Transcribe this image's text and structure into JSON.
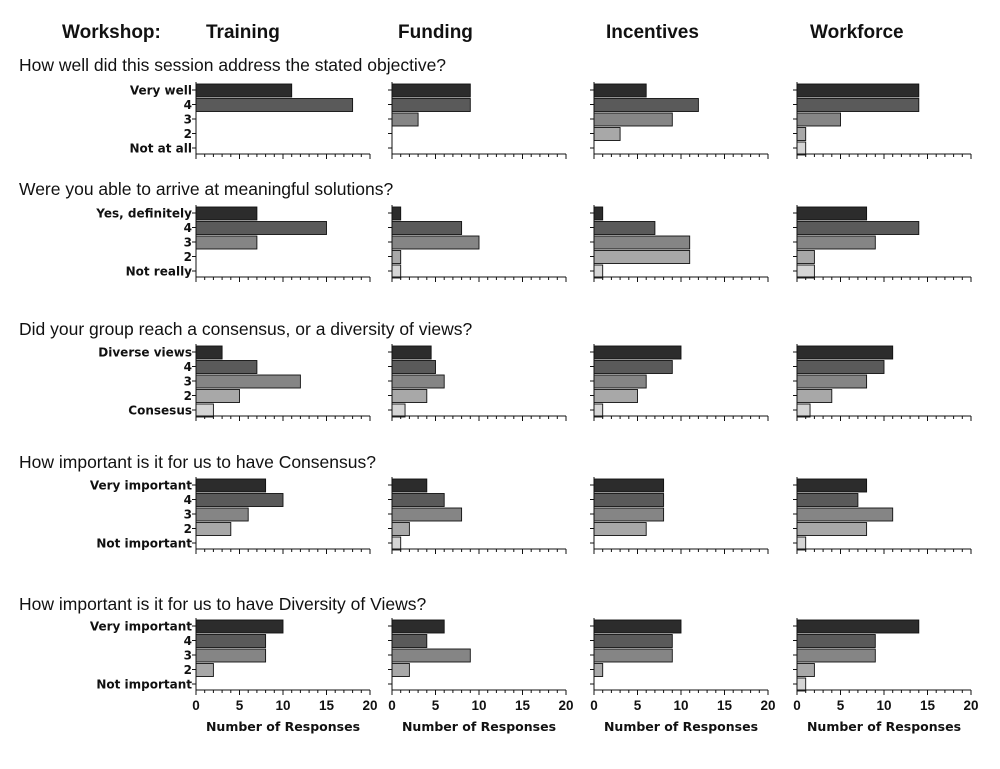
{
  "header": {
    "label": "Workshop:",
    "workshops": [
      "Training",
      "Funding",
      "Incentives",
      "Workforce"
    ]
  },
  "colors": [
    "#2c2c2c",
    "#5a5a5a",
    "#858585",
    "#a8a8a8",
    "#d5d5d5"
  ],
  "chart_data": {
    "type": "bar",
    "orientation": "horizontal",
    "xlabel": "Number of Responses",
    "xlim": [
      0,
      20
    ],
    "xticks": [
      0,
      5,
      10,
      15,
      20
    ],
    "columns": [
      "Training",
      "Funding",
      "Incentives",
      "Workforce"
    ],
    "questions": [
      {
        "title": "How well did this session address the stated objective?",
        "categories": [
          "Very well",
          "4",
          "3",
          "2",
          "Not at all"
        ],
        "values": [
          [
            11,
            18,
            0,
            0,
            0
          ],
          [
            9,
            9,
            3,
            0,
            0
          ],
          [
            6,
            12,
            9,
            3,
            0
          ],
          [
            14,
            14,
            5,
            1,
            1
          ]
        ]
      },
      {
        "title": "Were you able to arrive at meaningful solutions?",
        "categories": [
          "Yes, definitely",
          "4",
          "3",
          "2",
          "Not really"
        ],
        "values": [
          [
            7,
            15,
            7,
            0,
            0
          ],
          [
            1,
            8,
            10,
            1,
            1
          ],
          [
            1,
            7,
            11,
            11,
            1
          ],
          [
            8,
            14,
            9,
            2,
            2
          ]
        ]
      },
      {
        "title": "Did your group reach a consensus, or a diversity of views?",
        "categories": [
          "Diverse views",
          "4",
          "3",
          "2",
          "Consesus"
        ],
        "values": [
          [
            3,
            7,
            12,
            5,
            2
          ],
          [
            4.5,
            5,
            6,
            4,
            1.5
          ],
          [
            10,
            9,
            6,
            5,
            1
          ],
          [
            11,
            10,
            8,
            4,
            1.5
          ]
        ]
      },
      {
        "title": "How important is it for us to have Consensus?",
        "categories": [
          "Very important",
          "4",
          "3",
          "2",
          "Not important"
        ],
        "values": [
          [
            8,
            10,
            6,
            4,
            0
          ],
          [
            4,
            6,
            8,
            2,
            1
          ],
          [
            8,
            8,
            8,
            6,
            0
          ],
          [
            8,
            7,
            11,
            8,
            1
          ]
        ]
      },
      {
        "title": "How important is it for us to have Diversity of Views?",
        "categories": [
          "Very important",
          "4",
          "3",
          "2",
          "Not important"
        ],
        "values": [
          [
            10,
            8,
            8,
            2,
            0
          ],
          [
            6,
            4,
            9,
            2,
            0
          ],
          [
            10,
            9,
            9,
            1,
            0
          ],
          [
            14,
            9,
            9,
            2,
            1
          ]
        ]
      }
    ]
  }
}
